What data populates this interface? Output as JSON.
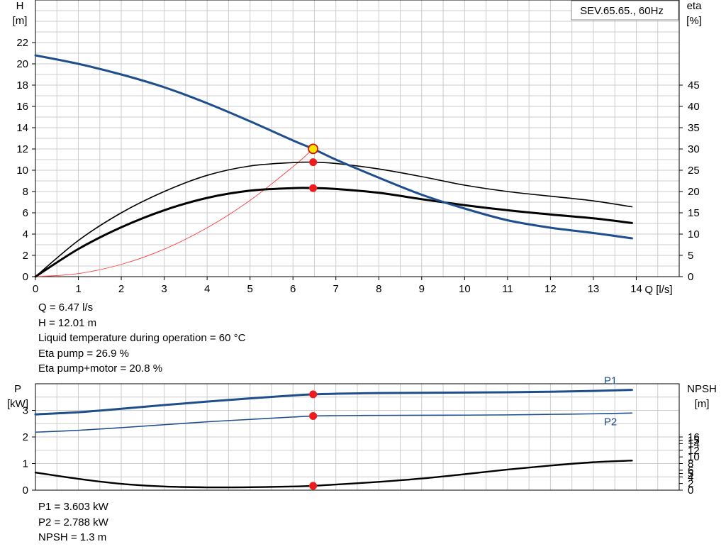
{
  "chart_data": [
    {
      "type": "line",
      "title": "SEV.65.65., 60Hz",
      "x_label": "Q [l/s]",
      "y_label_left": "H",
      "y_unit_left": "[m]",
      "y_label_right": "eta",
      "y_unit_right": "[%]",
      "x_ticks": [
        "0",
        "1",
        "2",
        "3",
        "4",
        "5",
        "6",
        "7",
        "8",
        "9",
        "10",
        "11",
        "12",
        "13",
        "14"
      ],
      "y_ticks_left": [
        "0",
        "2",
        "4",
        "6",
        "8",
        "10",
        "12",
        "14",
        "16",
        "18",
        "20",
        "22"
      ],
      "y_ticks_right": [
        "0",
        "5",
        "10",
        "15",
        "20",
        "25",
        "30",
        "35",
        "40",
        "45"
      ],
      "xlim": [
        0,
        15
      ],
      "ylim_left": [
        0,
        26
      ],
      "ylim_right": [
        0,
        65
      ],
      "grid": true,
      "duty_point": {
        "q": 6.47,
        "h": 12.01,
        "eta_pump": 26.9,
        "eta_pump_motor": 20.8
      },
      "series": [
        {
          "axis": "left",
          "color": "#1f4e8c",
          "width": 3,
          "x": [
            0,
            1,
            2,
            3,
            4,
            5,
            6,
            6.47,
            7,
            8,
            9,
            10,
            11,
            12,
            13,
            13.9
          ],
          "y": [
            20.8,
            20.0,
            19.0,
            17.8,
            16.3,
            14.6,
            12.8,
            12.01,
            11.0,
            9.3,
            7.7,
            6.4,
            5.3,
            4.6,
            4.1,
            3.6
          ]
        },
        {
          "axis": "right",
          "color": "#000000",
          "width": 1.6,
          "x": [
            0,
            1,
            2,
            3,
            4,
            5,
            6,
            6.47,
            7,
            8,
            9,
            10,
            11,
            12,
            13,
            13.9
          ],
          "y": [
            0,
            8.5,
            15.0,
            20.0,
            23.8,
            26.0,
            26.8,
            26.9,
            26.6,
            25.3,
            23.5,
            21.5,
            20.0,
            18.9,
            17.8,
            16.4
          ]
        },
        {
          "axis": "right",
          "color": "#000000",
          "width": 3,
          "x": [
            0,
            1,
            2,
            3,
            4,
            5,
            6,
            6.47,
            7,
            8,
            9,
            10,
            11,
            12,
            13,
            13.9
          ],
          "y": [
            0,
            6.5,
            11.6,
            15.6,
            18.5,
            20.2,
            20.8,
            20.8,
            20.6,
            19.7,
            18.2,
            16.8,
            15.6,
            14.6,
            13.7,
            12.6
          ]
        },
        {
          "axis": "left",
          "color": "#ff3b3b",
          "width": 0.9,
          "x": [
            0,
            1,
            2,
            3,
            4,
            5,
            6,
            6.47
          ],
          "y": [
            0,
            0.29,
            1.15,
            2.58,
            4.59,
            7.17,
            10.33,
            12.01
          ]
        }
      ]
    },
    {
      "type": "line",
      "y_label_left": "P",
      "y_unit_left": "[kW]",
      "y_label_right": "NPSH",
      "y_unit_right": "[m]",
      "y_ticks_left": [
        "0",
        "1",
        "2",
        "3"
      ],
      "y_ticks_right": [
        "0",
        "2",
        "4",
        "5",
        "6",
        "8",
        "10",
        "12",
        "14",
        "15",
        "16"
      ],
      "xlim": [
        0,
        15
      ],
      "ylim_left": [
        0,
        4
      ],
      "ylim_right": [
        0,
        32
      ],
      "grid": true,
      "series": [
        {
          "name": "P1",
          "axis": "left",
          "color": "#1f4e8c",
          "width": 3,
          "x": [
            0,
            1,
            2,
            3,
            4,
            5,
            6,
            6.47,
            7,
            8,
            9,
            10,
            11,
            12,
            13,
            13.9
          ],
          "y": [
            2.85,
            2.93,
            3.06,
            3.2,
            3.33,
            3.45,
            3.56,
            3.603,
            3.625,
            3.65,
            3.66,
            3.67,
            3.68,
            3.7,
            3.73,
            3.77
          ]
        },
        {
          "name": "P2",
          "axis": "left",
          "color": "#1f4e8c",
          "width": 1.6,
          "x": [
            0,
            1,
            2,
            3,
            4,
            5,
            6,
            6.47,
            7,
            8,
            9,
            10,
            11,
            12,
            13,
            13.9
          ],
          "y": [
            2.18,
            2.25,
            2.35,
            2.46,
            2.57,
            2.66,
            2.75,
            2.788,
            2.8,
            2.81,
            2.815,
            2.82,
            2.83,
            2.85,
            2.87,
            2.9
          ]
        },
        {
          "axis": "right",
          "color": "#000000",
          "width": 2.4,
          "x": [
            0,
            1,
            2,
            3,
            4,
            5,
            6,
            6.47,
            7,
            8,
            9,
            10,
            11,
            12,
            13,
            13.9
          ],
          "y": [
            5.3,
            3.4,
            1.9,
            1.1,
            0.85,
            0.9,
            1.1,
            1.3,
            1.7,
            2.5,
            3.5,
            4.8,
            6.2,
            7.4,
            8.4,
            8.9
          ]
        }
      ],
      "points": [
        {
          "axis": "left",
          "x": 6.47,
          "y": 3.603
        },
        {
          "axis": "left",
          "x": 6.47,
          "y": 2.788
        },
        {
          "axis": "right",
          "x": 6.47,
          "y": 1.3
        }
      ]
    }
  ],
  "info_top": [
    "Q = 6.47 l/s",
    "H = 12.01 m",
    "Liquid temperature during operation = 60 °C",
    "Eta pump = 26.9 %",
    "Eta pump+motor = 20.8 %"
  ],
  "info_bottom": [
    "P1 = 3.603 kW",
    "P2 = 2.788 kW",
    "NPSH = 1.3 m"
  ]
}
